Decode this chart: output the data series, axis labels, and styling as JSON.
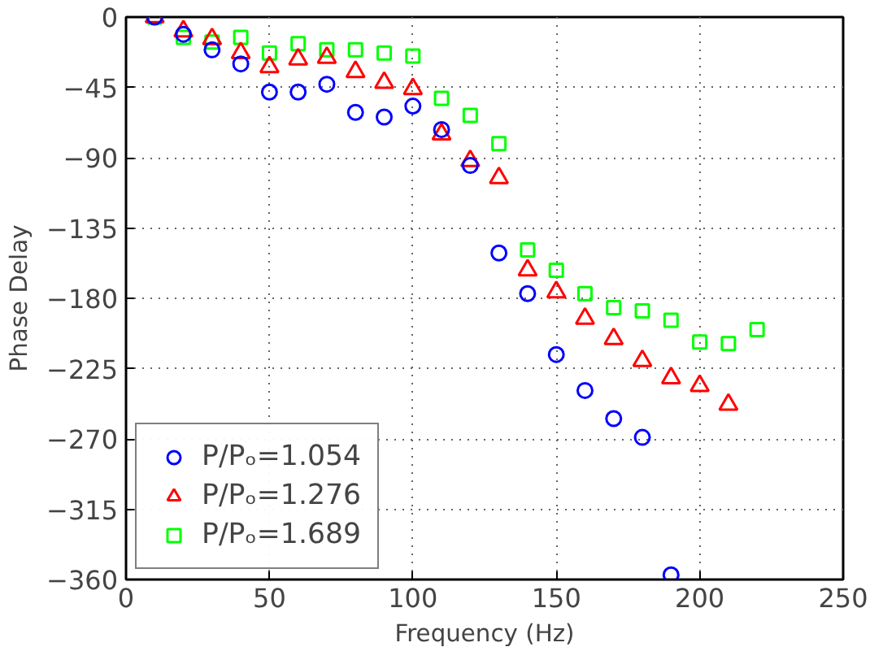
{
  "chart_data": {
    "type": "scatter",
    "xlabel": "Frequency (Hz)",
    "ylabel": "Phase Delay",
    "xlim": [
      0,
      250
    ],
    "xticks": [
      0,
      50,
      100,
      150,
      200,
      250
    ],
    "ylim": [
      -360,
      0
    ],
    "yticks": [
      -360,
      -315,
      -270,
      -225,
      -180,
      -135,
      -90,
      -45,
      0
    ],
    "grid": true,
    "legend": "bottom left",
    "series": [
      {
        "name": "P/Pₒ=1.054",
        "color": "#0000ff",
        "marker": "circle",
        "x": [
          10,
          20,
          30,
          40,
          50,
          60,
          70,
          80,
          90,
          100,
          110,
          120,
          130,
          140,
          150,
          160,
          170,
          180,
          190
        ],
        "values": [
          0,
          -11,
          -21,
          -30,
          -48,
          -48,
          -43,
          -61,
          -64,
          -57,
          -72,
          -95,
          -151,
          -177,
          -216,
          -239,
          -257,
          -269,
          -357
        ]
      },
      {
        "name": "P/Pₒ=1.276",
        "color": "#ff0000",
        "marker": "triangle",
        "x": [
          10,
          20,
          30,
          40,
          50,
          60,
          70,
          80,
          90,
          100,
          110,
          120,
          130,
          140,
          150,
          160,
          170,
          180,
          190,
          200,
          210
        ],
        "values": [
          0,
          -9,
          -14,
          -23,
          -32,
          -27,
          -26,
          -35,
          -42,
          -46,
          -75,
          -92,
          -103,
          -162,
          -176,
          -193,
          -206,
          -220,
          -231,
          -236,
          -248
        ]
      },
      {
        "name": "P/Pₒ=1.689",
        "color": "#00ff00",
        "marker": "square",
        "x": [
          10,
          20,
          30,
          40,
          50,
          60,
          70,
          80,
          90,
          100,
          110,
          120,
          130,
          140,
          150,
          160,
          170,
          180,
          190,
          200,
          210,
          220
        ],
        "values": [
          0,
          -13,
          -16,
          -13,
          -23,
          -17,
          -21,
          -21,
          -23,
          -25,
          -52,
          -63,
          -81,
          -149,
          -162,
          -177,
          -186,
          -188,
          -194,
          -208,
          -209,
          -200
        ]
      }
    ]
  }
}
